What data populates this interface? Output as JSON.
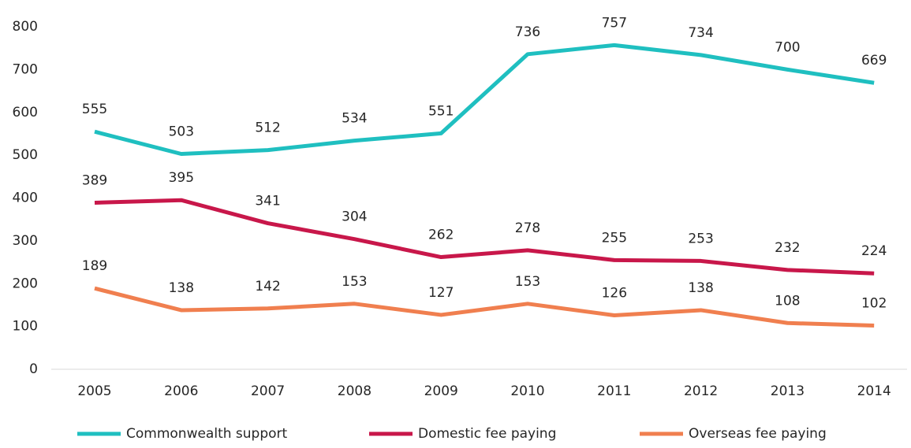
{
  "chart_data": {
    "type": "line",
    "categories": [
      "2005",
      "2006",
      "2007",
      "2008",
      "2009",
      "2010",
      "2011",
      "2012",
      "2013",
      "2014"
    ],
    "series": [
      {
        "name": "Commonwealth support",
        "color": "#1fbfc0",
        "values": [
          555,
          503,
          512,
          534,
          551,
          736,
          757,
          734,
          700,
          669
        ]
      },
      {
        "name": "Domestic fee paying",
        "color": "#c8174a",
        "values": [
          389,
          395,
          341,
          304,
          262,
          278,
          255,
          253,
          232,
          224
        ]
      },
      {
        "name": "Overseas fee paying",
        "color": "#f07f4f",
        "values": [
          189,
          138,
          142,
          153,
          127,
          153,
          126,
          138,
          108,
          102
        ]
      }
    ],
    "ylim": [
      0,
      800
    ],
    "yticks": [
      0,
      100,
      200,
      300,
      400,
      500,
      600,
      700,
      800
    ],
    "grid": false,
    "legend": "bottom",
    "data_labels": true
  }
}
